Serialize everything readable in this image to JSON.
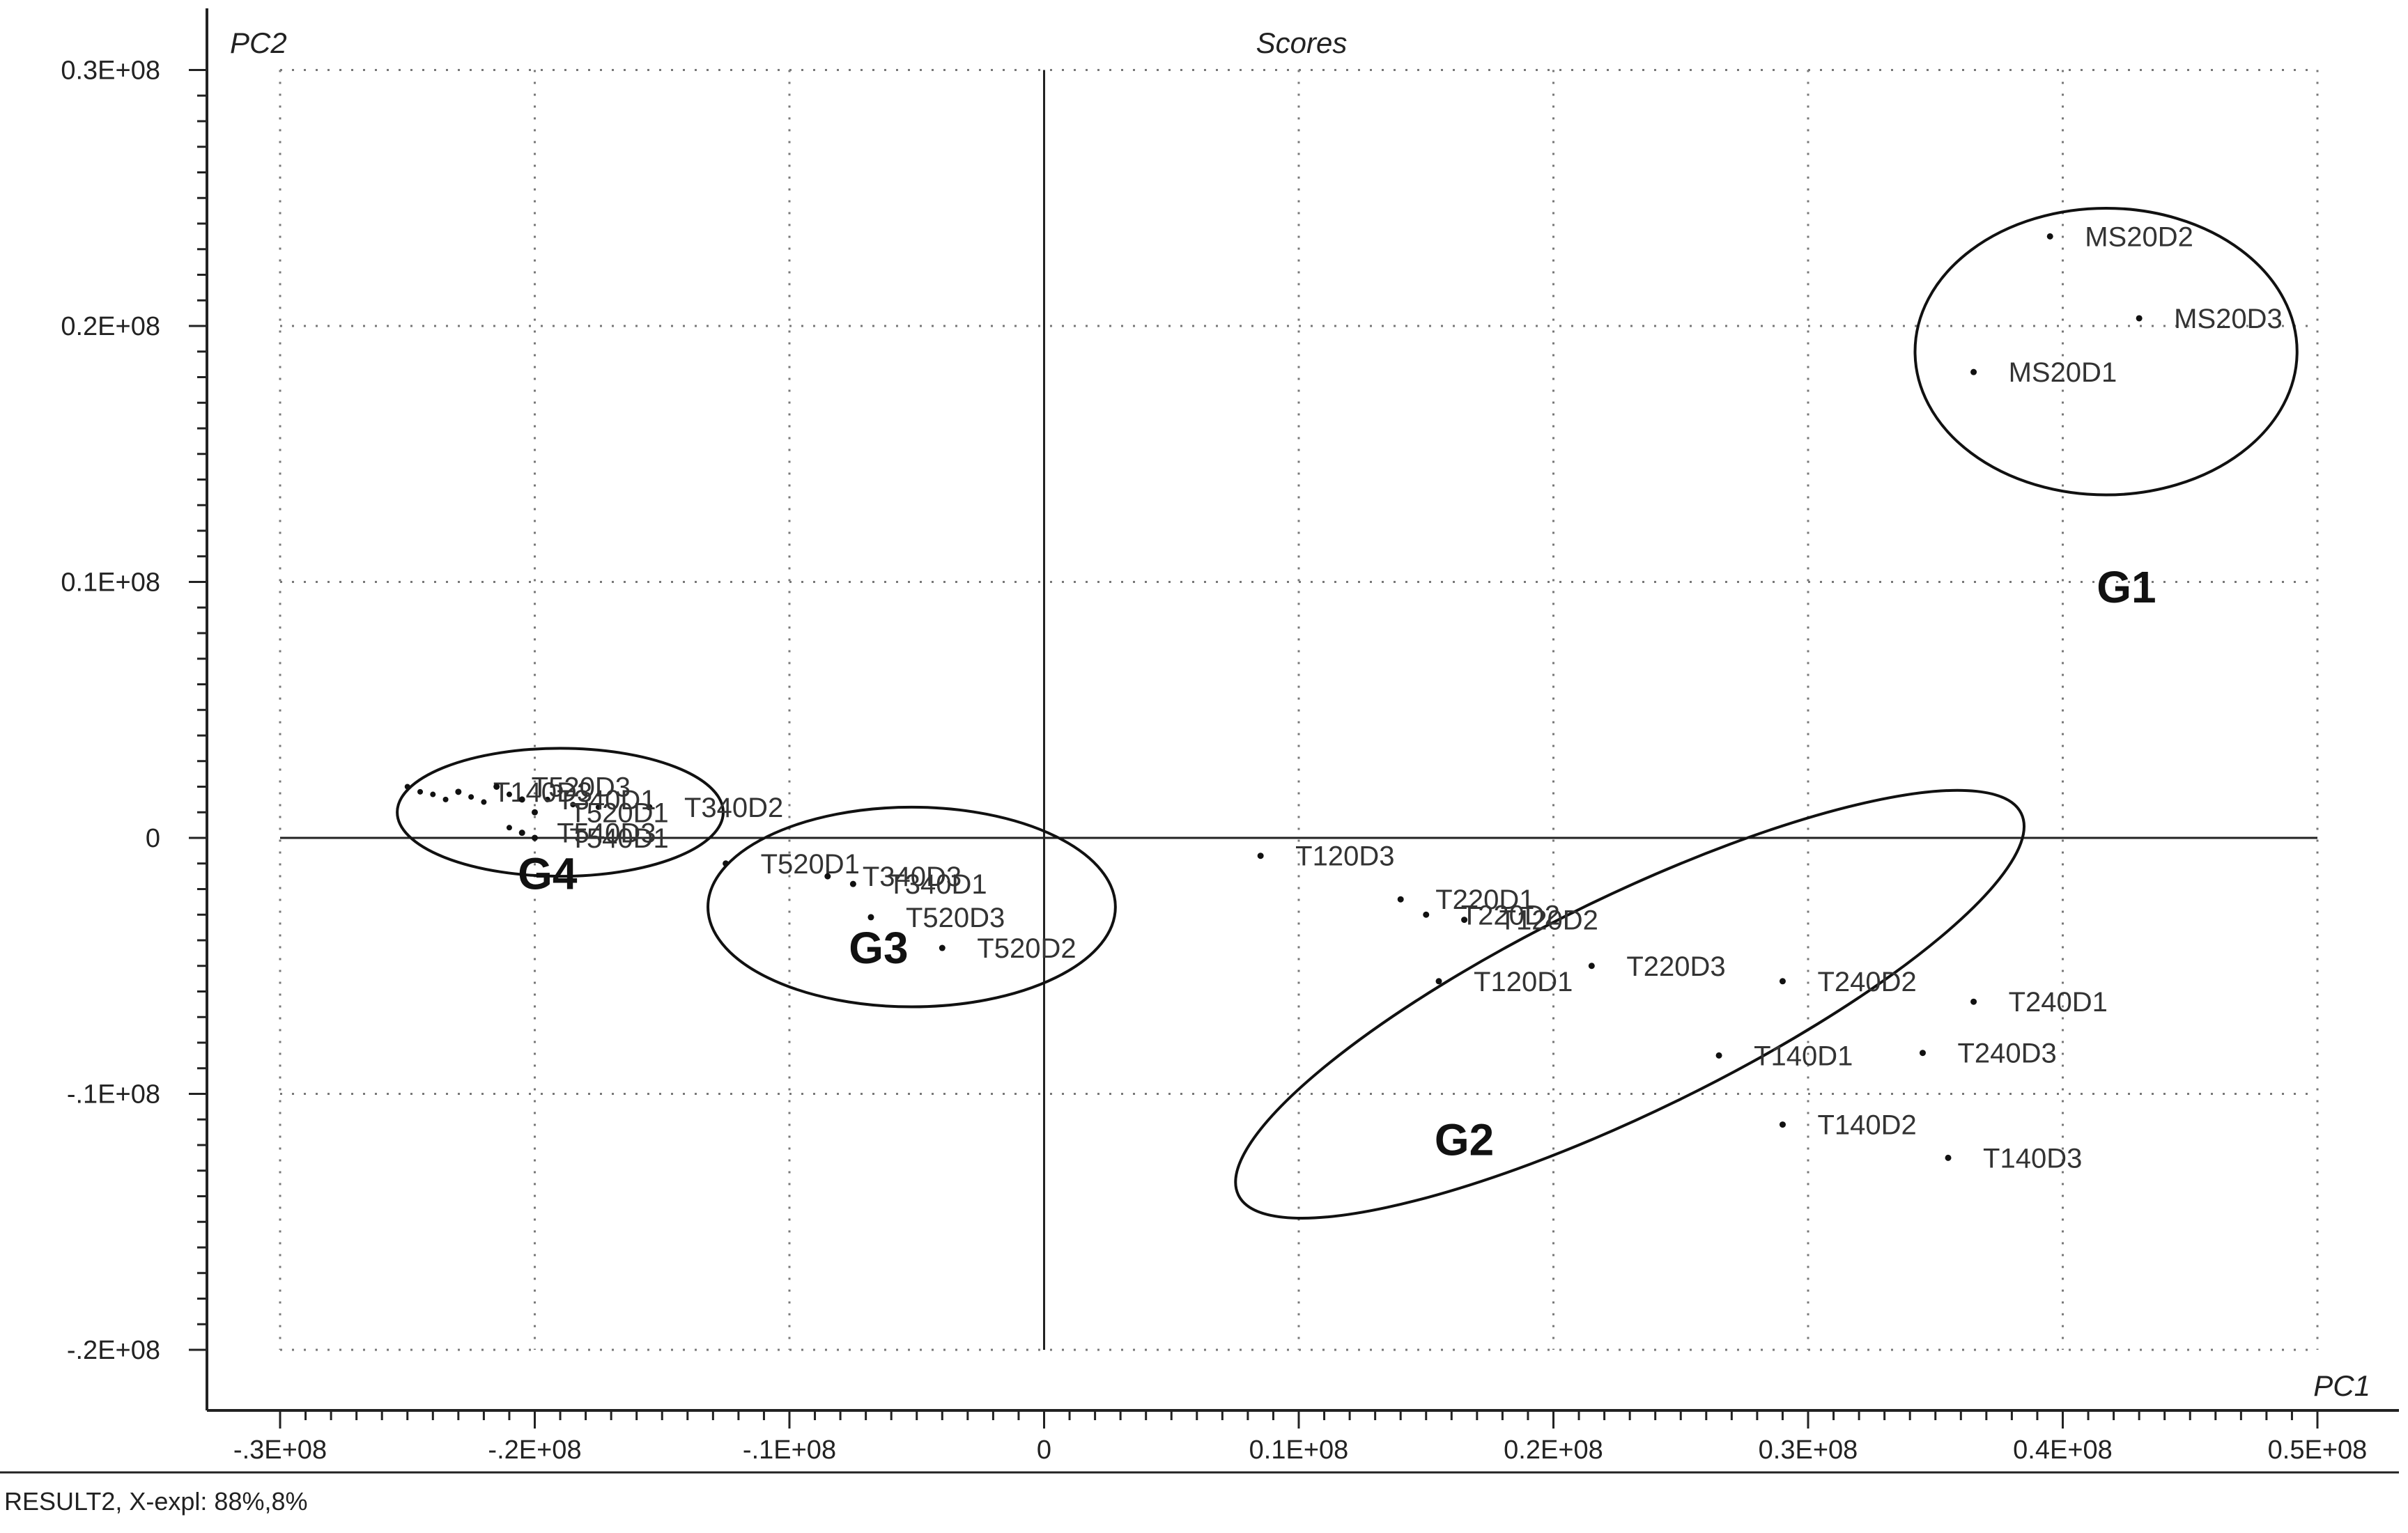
{
  "chart_data": {
    "type": "scatter",
    "title": "Scores",
    "xlabel": "PC1",
    "ylabel": "PC2",
    "footer": "RESULT2, X-expl: 88%,8%",
    "xlim": [
      -30000000.0,
      50000000.0
    ],
    "ylim": [
      -20000000.0,
      30000000.0
    ],
    "x_ticks": [
      {
        "value": -30000000.0,
        "label": "-.3E+08"
      },
      {
        "value": -20000000.0,
        "label": "-.2E+08"
      },
      {
        "value": -10000000.0,
        "label": "-.1E+08"
      },
      {
        "value": 0,
        "label": "0"
      },
      {
        "value": 10000000.0,
        "label": "0.1E+08"
      },
      {
        "value": 20000000.0,
        "label": "0.2E+08"
      },
      {
        "value": 30000000.0,
        "label": "0.3E+08"
      },
      {
        "value": 40000000.0,
        "label": "0.4E+08"
      },
      {
        "value": 50000000.0,
        "label": "0.5E+08"
      }
    ],
    "y_ticks": [
      {
        "value": 30000000.0,
        "label": "0.3E+08"
      },
      {
        "value": 20000000.0,
        "label": "0.2E+08"
      },
      {
        "value": 10000000.0,
        "label": "0.1E+08"
      },
      {
        "value": 0,
        "label": "0"
      },
      {
        "value": -10000000.0,
        "label": "-.1E+08"
      },
      {
        "value": -20000000.0,
        "label": "-.2E+08"
      }
    ],
    "grid": true,
    "points": [
      {
        "label": "MS20D2",
        "x": 39500000.0,
        "y": 23500000.0
      },
      {
        "label": "MS20D3",
        "x": 43000000.0,
        "y": 20300000.0
      },
      {
        "label": "MS20D1",
        "x": 36500000.0,
        "y": 18200000.0
      },
      {
        "label": "T340D2",
        "x": -15500000.0,
        "y": 1200000.0
      },
      {
        "label": "T140D3",
        "x": -23000000.0,
        "y": 1800000.0
      },
      {
        "label": "T520D3",
        "x": -21500000.0,
        "y": 2000000.0
      },
      {
        "label": "T340D1",
        "x": -20500000.0,
        "y": 1500000.0
      },
      {
        "label": "T520D1",
        "x": -20000000.0,
        "y": 1000000.0
      },
      {
        "label": "T540D3",
        "x": -20500000.0,
        "y": 200000.0
      },
      {
        "label": "T540D1",
        "x": -20000000.0,
        "y": 0
      },
      {
        "label": "T520D1",
        "x": -12500000.0,
        "y": -1000000.0
      },
      {
        "label": "T340D3",
        "x": -8500000.0,
        "y": -1500000.0
      },
      {
        "label": "T340D1",
        "x": -7500000.0,
        "y": -1800000.0
      },
      {
        "label": "T520D3",
        "x": -6800000.0,
        "y": -3100000.0
      },
      {
        "label": "T520D2",
        "x": -4000000.0,
        "y": -4300000.0
      },
      {
        "label": "T120D3",
        "x": 8500000.0,
        "y": -700000.0
      },
      {
        "label": "T220D1",
        "x": 14000000.0,
        "y": -2400000.0
      },
      {
        "label": "T220D2",
        "x": 15000000.0,
        "y": -3000000.0
      },
      {
        "label": "T120D2",
        "x": 16500000.0,
        "y": -3200000.0
      },
      {
        "label": "T120D1",
        "x": 15500000.0,
        "y": -5600000.0
      },
      {
        "label": "T220D3",
        "x": 21500000.0,
        "y": -5000000.0
      },
      {
        "label": "T240D2",
        "x": 29000000.0,
        "y": -5600000.0
      },
      {
        "label": "T240D1",
        "x": 36500000.0,
        "y": -6400000.0
      },
      {
        "label": "T140D1",
        "x": 26500000.0,
        "y": -8500000.0
      },
      {
        "label": "T240D3",
        "x": 34500000.0,
        "y": -8400000.0
      },
      {
        "label": "T140D2",
        "x": 29000000.0,
        "y": -11200000.0
      },
      {
        "label": "T140D3",
        "x": 35500000.0,
        "y": -12500000.0
      }
    ],
    "extra_points": [
      {
        "x": -25000000.0,
        "y": 2000000.0
      },
      {
        "x": -24500000.0,
        "y": 1800000.0
      },
      {
        "x": -24000000.0,
        "y": 1700000.0
      },
      {
        "x": -23500000.0,
        "y": 1500000.0
      },
      {
        "x": -22500000.0,
        "y": 1600000.0
      },
      {
        "x": -22000000.0,
        "y": 1400000.0
      },
      {
        "x": -21000000.0,
        "y": 1700000.0
      },
      {
        "x": -19500000.0,
        "y": 1500000.0
      },
      {
        "x": -18500000.0,
        "y": 1300000.0
      },
      {
        "x": -17500000.0,
        "y": 1200000.0
      },
      {
        "x": -21000000.0,
        "y": 400000.0
      }
    ],
    "groups": [
      {
        "label": "G1",
        "cx": 41700000.0,
        "cy": 19000000.0,
        "rx": 7500000.0,
        "ry": 5600000.0,
        "angle": 0,
        "label_x": 42500000.0,
        "label_y": 9200000.0
      },
      {
        "label": "G2",
        "cx": 23000000.0,
        "cy": -6500000.0,
        "rx": 17100000.0,
        "ry": 4200000.0,
        "angle": -26,
        "label_x": 16500000.0,
        "label_y": -12400000.0
      },
      {
        "label": "G3",
        "cx": -5200000.0,
        "cy": -2700000.0,
        "rx": 8000000.0,
        "ry": 3900000.0,
        "angle": 0,
        "label_x": -6500000.0,
        "label_y": -4900000.0
      },
      {
        "label": "G4",
        "cx": -19000000.0,
        "cy": 1000000.0,
        "rx": 6400000.0,
        "ry": 2500000.0,
        "angle": 0,
        "label_x": -19500000.0,
        "label_y": -2000000.0
      }
    ]
  }
}
